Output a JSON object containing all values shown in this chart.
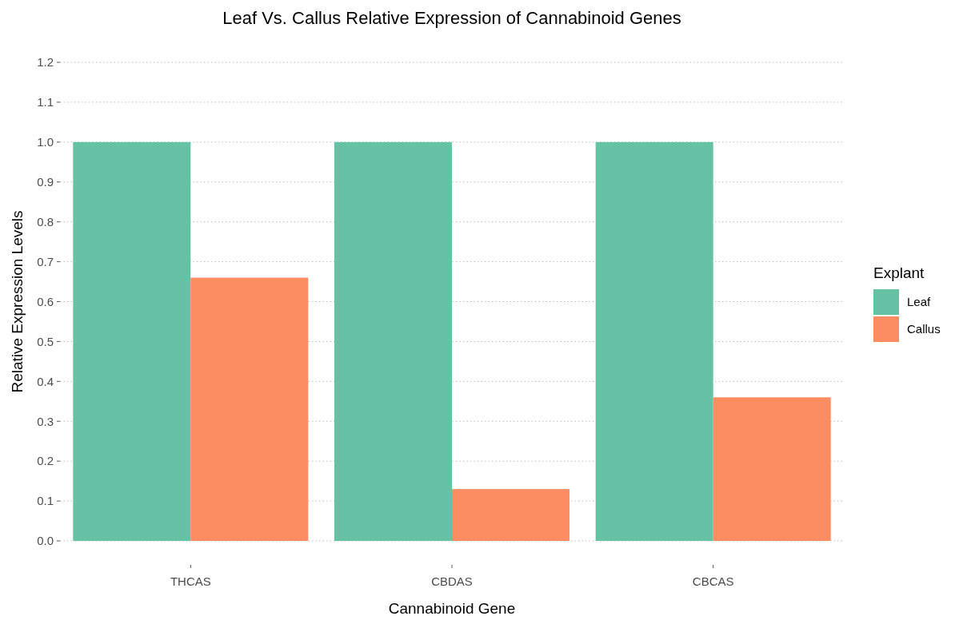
{
  "chart_data": {
    "type": "bar",
    "title": "Leaf Vs. Callus Relative Expression of Cannabinoid Genes",
    "xlabel": "Cannabinoid Gene",
    "ylabel": "Relative Expression Levels",
    "legend_title": "Explant",
    "categories": [
      "THCAS",
      "CBDAS",
      "CBCAS"
    ],
    "series": [
      {
        "name": "Leaf",
        "color": "#66c2a5",
        "values": [
          1,
          1,
          1
        ]
      },
      {
        "name": "Callus",
        "color": "#fc8d62",
        "values": [
          0.66,
          0.13,
          0.36
        ]
      }
    ],
    "ylim": [
      0,
      1.2
    ],
    "yticks": [
      {
        "value": 0,
        "label": "0.0"
      },
      0.1,
      0.2,
      0.3,
      0.4,
      0.5,
      0.6,
      0.7,
      0.8,
      0.9,
      {
        "value": 1,
        "label": "1.0"
      },
      1.1,
      1.2
    ],
    "grid": "y",
    "legend": "right"
  }
}
